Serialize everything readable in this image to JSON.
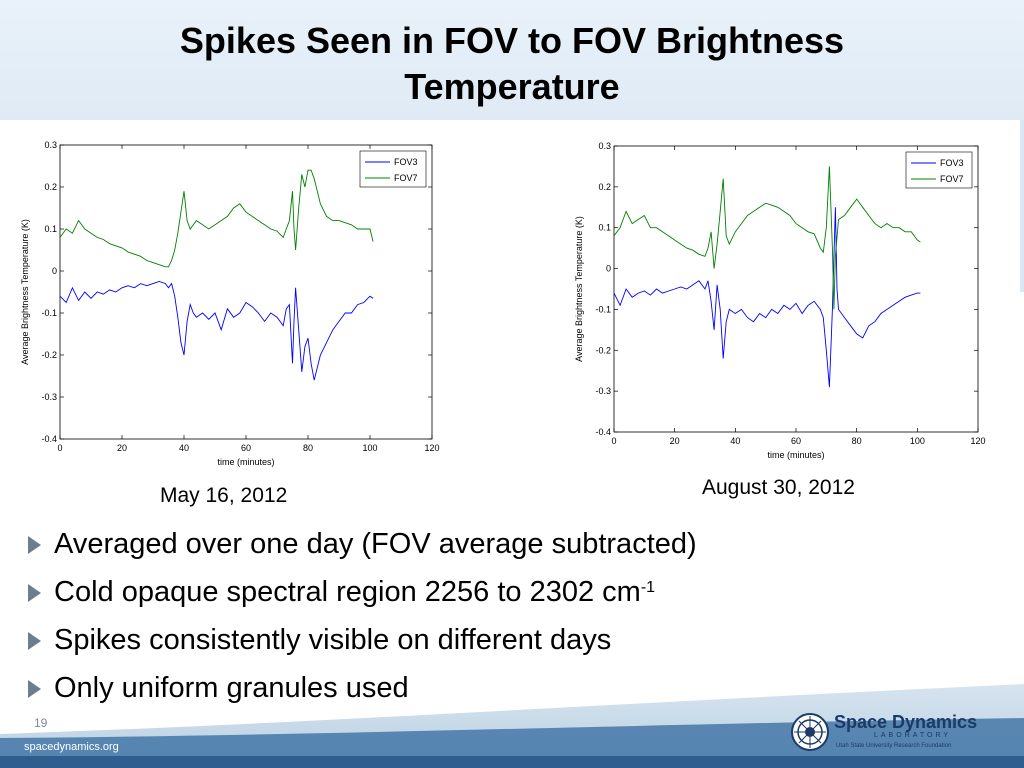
{
  "slide": {
    "title": "Spikes Seen in FOV to FOV Brightness Temperature",
    "title_line1": "Spikes Seen in FOV to FOV Brightness",
    "title_line2": "Temperature",
    "page_number": "19",
    "website": "spacedynamics.org",
    "logo_name": "Space Dynamics",
    "logo_sub": "LABORATORY",
    "logo_org": "Utah State University Research Foundation"
  },
  "bullets": [
    {
      "text": "Averaged over one day (FOV average subtracted)",
      "sup": ""
    },
    {
      "text": "Cold opaque spectral region 2256 to 2302 cm",
      "sup": "-1"
    },
    {
      "text": "Spikes consistently visible on different days",
      "sup": ""
    },
    {
      "text": "Only uniform granules used",
      "sup": ""
    }
  ],
  "colors": {
    "fov3": "#0000ff",
    "fov7": "#008000",
    "footer": "#3f6fa0",
    "arrow": "#6b7e8e"
  },
  "icons": {
    "bullet": "triangle-right-icon",
    "logo": "sdl-seal-icon"
  },
  "chart_data": [
    {
      "type": "line",
      "date_label": "May 16, 2012",
      "xlabel": "time (minutes)",
      "ylabel": "Average Brightness Temperature (K)",
      "xlim": [
        0,
        120
      ],
      "ylim": [
        -0.4,
        0.3
      ],
      "xticks": [
        0,
        20,
        40,
        60,
        80,
        100,
        120
      ],
      "yticks": [
        -0.4,
        -0.3,
        -0.2,
        -0.1,
        0,
        0.1,
        0.2,
        0.3
      ],
      "legend_position": "top-right",
      "series": [
        {
          "name": "FOV3",
          "color": "#0000ff",
          "points": [
            [
              0,
              -0.06
            ],
            [
              2,
              -0.075
            ],
            [
              4,
              -0.04
            ],
            [
              6,
              -0.07
            ],
            [
              8,
              -0.05
            ],
            [
              10,
              -0.065
            ],
            [
              12,
              -0.05
            ],
            [
              14,
              -0.055
            ],
            [
              16,
              -0.045
            ],
            [
              18,
              -0.05
            ],
            [
              20,
              -0.04
            ],
            [
              22,
              -0.035
            ],
            [
              24,
              -0.04
            ],
            [
              26,
              -0.03
            ],
            [
              28,
              -0.035
            ],
            [
              30,
              -0.03
            ],
            [
              32,
              -0.025
            ],
            [
              34,
              -0.03
            ],
            [
              35,
              -0.04
            ],
            [
              36,
              -0.03
            ],
            [
              37,
              -0.06
            ],
            [
              38,
              -0.11
            ],
            [
              39,
              -0.17
            ],
            [
              40,
              -0.2
            ],
            [
              41,
              -0.12
            ],
            [
              42,
              -0.08
            ],
            [
              43,
              -0.1
            ],
            [
              44,
              -0.11
            ],
            [
              46,
              -0.1
            ],
            [
              48,
              -0.115
            ],
            [
              50,
              -0.1
            ],
            [
              52,
              -0.14
            ],
            [
              54,
              -0.09
            ],
            [
              56,
              -0.11
            ],
            [
              58,
              -0.1
            ],
            [
              60,
              -0.075
            ],
            [
              62,
              -0.085
            ],
            [
              64,
              -0.1
            ],
            [
              66,
              -0.12
            ],
            [
              68,
              -0.1
            ],
            [
              70,
              -0.11
            ],
            [
              72,
              -0.13
            ],
            [
              73,
              -0.09
            ],
            [
              74,
              -0.08
            ],
            [
              75,
              -0.22
            ],
            [
              75.5,
              -0.12
            ],
            [
              76,
              -0.04
            ],
            [
              77,
              -0.14
            ],
            [
              78,
              -0.24
            ],
            [
              79,
              -0.18
            ],
            [
              80,
              -0.16
            ],
            [
              81,
              -0.22
            ],
            [
              82,
              -0.26
            ],
            [
              84,
              -0.2
            ],
            [
              86,
              -0.17
            ],
            [
              88,
              -0.14
            ],
            [
              90,
              -0.12
            ],
            [
              92,
              -0.1
            ],
            [
              94,
              -0.1
            ],
            [
              96,
              -0.08
            ],
            [
              98,
              -0.075
            ],
            [
              100,
              -0.06
            ],
            [
              101,
              -0.065
            ]
          ]
        },
        {
          "name": "FOV7",
          "color": "#008000",
          "points": [
            [
              0,
              0.08
            ],
            [
              2,
              0.1
            ],
            [
              4,
              0.09
            ],
            [
              6,
              0.12
            ],
            [
              8,
              0.1
            ],
            [
              10,
              0.09
            ],
            [
              12,
              0.08
            ],
            [
              14,
              0.075
            ],
            [
              16,
              0.065
            ],
            [
              18,
              0.06
            ],
            [
              20,
              0.055
            ],
            [
              22,
              0.045
            ],
            [
              24,
              0.04
            ],
            [
              26,
              0.035
            ],
            [
              28,
              0.025
            ],
            [
              30,
              0.02
            ],
            [
              32,
              0.015
            ],
            [
              34,
              0.01
            ],
            [
              35,
              0.01
            ],
            [
              36,
              0.025
            ],
            [
              37,
              0.05
            ],
            [
              38,
              0.09
            ],
            [
              39,
              0.14
            ],
            [
              40,
              0.19
            ],
            [
              41,
              0.12
            ],
            [
              42,
              0.1
            ],
            [
              44,
              0.12
            ],
            [
              46,
              0.11
            ],
            [
              48,
              0.1
            ],
            [
              50,
              0.11
            ],
            [
              52,
              0.12
            ],
            [
              54,
              0.13
            ],
            [
              56,
              0.15
            ],
            [
              58,
              0.16
            ],
            [
              60,
              0.14
            ],
            [
              62,
              0.13
            ],
            [
              64,
              0.12
            ],
            [
              66,
              0.11
            ],
            [
              68,
              0.1
            ],
            [
              70,
              0.095
            ],
            [
              72,
              0.08
            ],
            [
              73,
              0.1
            ],
            [
              74,
              0.12
            ],
            [
              75,
              0.19
            ],
            [
              75.5,
              0.1
            ],
            [
              76,
              0.05
            ],
            [
              77,
              0.15
            ],
            [
              78,
              0.23
            ],
            [
              79,
              0.2
            ],
            [
              80,
              0.24
            ],
            [
              81,
              0.24
            ],
            [
              82,
              0.22
            ],
            [
              84,
              0.16
            ],
            [
              86,
              0.13
            ],
            [
              88,
              0.12
            ],
            [
              90,
              0.12
            ],
            [
              92,
              0.115
            ],
            [
              94,
              0.11
            ],
            [
              96,
              0.1
            ],
            [
              98,
              0.1
            ],
            [
              100,
              0.1
            ],
            [
              101,
              0.07
            ]
          ]
        }
      ]
    },
    {
      "type": "line",
      "date_label": "August 30, 2012",
      "xlabel": "time (minutes)",
      "ylabel": "Average Brightness Temperature (K)",
      "xlim": [
        0,
        120
      ],
      "ylim": [
        -0.4,
        0.3
      ],
      "xticks": [
        0,
        20,
        40,
        60,
        80,
        100,
        120
      ],
      "yticks": [
        -0.4,
        -0.3,
        -0.2,
        -0.1,
        0,
        0.1,
        0.2,
        0.3
      ],
      "legend_position": "top-right",
      "series": [
        {
          "name": "FOV3",
          "color": "#0000ff",
          "points": [
            [
              0,
              -0.06
            ],
            [
              2,
              -0.09
            ],
            [
              4,
              -0.05
            ],
            [
              6,
              -0.07
            ],
            [
              8,
              -0.06
            ],
            [
              10,
              -0.055
            ],
            [
              12,
              -0.065
            ],
            [
              14,
              -0.05
            ],
            [
              16,
              -0.06
            ],
            [
              18,
              -0.055
            ],
            [
              20,
              -0.05
            ],
            [
              22,
              -0.045
            ],
            [
              24,
              -0.05
            ],
            [
              26,
              -0.04
            ],
            [
              28,
              -0.03
            ],
            [
              30,
              -0.05
            ],
            [
              31,
              -0.03
            ],
            [
              32,
              -0.08
            ],
            [
              33,
              -0.15
            ],
            [
              34,
              -0.04
            ],
            [
              35,
              -0.1
            ],
            [
              36,
              -0.22
            ],
            [
              37,
              -0.13
            ],
            [
              38,
              -0.1
            ],
            [
              40,
              -0.11
            ],
            [
              42,
              -0.1
            ],
            [
              44,
              -0.12
            ],
            [
              46,
              -0.13
            ],
            [
              48,
              -0.11
            ],
            [
              50,
              -0.12
            ],
            [
              52,
              -0.1
            ],
            [
              54,
              -0.11
            ],
            [
              56,
              -0.09
            ],
            [
              58,
              -0.1
            ],
            [
              60,
              -0.085
            ],
            [
              62,
              -0.11
            ],
            [
              64,
              -0.09
            ],
            [
              66,
              -0.08
            ],
            [
              68,
              -0.1
            ],
            [
              69,
              -0.12
            ],
            [
              70,
              -0.2
            ],
            [
              71,
              -0.29
            ],
            [
              72,
              -0.1
            ],
            [
              73,
              0.15
            ],
            [
              73.5,
              -0.05
            ],
            [
              74,
              -0.1
            ],
            [
              76,
              -0.12
            ],
            [
              78,
              -0.14
            ],
            [
              80,
              -0.16
            ],
            [
              82,
              -0.17
            ],
            [
              84,
              -0.14
            ],
            [
              86,
              -0.13
            ],
            [
              88,
              -0.11
            ],
            [
              90,
              -0.1
            ],
            [
              92,
              -0.09
            ],
            [
              94,
              -0.08
            ],
            [
              96,
              -0.07
            ],
            [
              98,
              -0.065
            ],
            [
              100,
              -0.06
            ],
            [
              101,
              -0.06
            ]
          ]
        },
        {
          "name": "FOV7",
          "color": "#008000",
          "points": [
            [
              0,
              0.08
            ],
            [
              2,
              0.1
            ],
            [
              4,
              0.14
            ],
            [
              6,
              0.11
            ],
            [
              8,
              0.12
            ],
            [
              10,
              0.13
            ],
            [
              12,
              0.1
            ],
            [
              14,
              0.1
            ],
            [
              16,
              0.09
            ],
            [
              18,
              0.08
            ],
            [
              20,
              0.07
            ],
            [
              22,
              0.06
            ],
            [
              24,
              0.05
            ],
            [
              26,
              0.045
            ],
            [
              28,
              0.035
            ],
            [
              30,
              0.03
            ],
            [
              31,
              0.05
            ],
            [
              32,
              0.09
            ],
            [
              33,
              0.0
            ],
            [
              34,
              0.06
            ],
            [
              35,
              0.14
            ],
            [
              36,
              0.22
            ],
            [
              37,
              0.08
            ],
            [
              38,
              0.06
            ],
            [
              40,
              0.09
            ],
            [
              42,
              0.11
            ],
            [
              44,
              0.13
            ],
            [
              46,
              0.14
            ],
            [
              48,
              0.15
            ],
            [
              50,
              0.16
            ],
            [
              52,
              0.155
            ],
            [
              54,
              0.15
            ],
            [
              56,
              0.14
            ],
            [
              58,
              0.13
            ],
            [
              60,
              0.11
            ],
            [
              62,
              0.1
            ],
            [
              64,
              0.09
            ],
            [
              66,
              0.085
            ],
            [
              68,
              0.05
            ],
            [
              69,
              0.04
            ],
            [
              70,
              0.1
            ],
            [
              71,
              0.25
            ],
            [
              72,
              0.05
            ],
            [
              72.5,
              -0.1
            ],
            [
              73,
              0.03
            ],
            [
              74,
              0.12
            ],
            [
              76,
              0.13
            ],
            [
              78,
              0.15
            ],
            [
              80,
              0.17
            ],
            [
              82,
              0.15
            ],
            [
              84,
              0.13
            ],
            [
              86,
              0.11
            ],
            [
              88,
              0.1
            ],
            [
              90,
              0.11
            ],
            [
              92,
              0.1
            ],
            [
              94,
              0.1
            ],
            [
              96,
              0.09
            ],
            [
              98,
              0.09
            ],
            [
              100,
              0.07
            ],
            [
              101,
              0.065
            ]
          ]
        }
      ]
    }
  ]
}
